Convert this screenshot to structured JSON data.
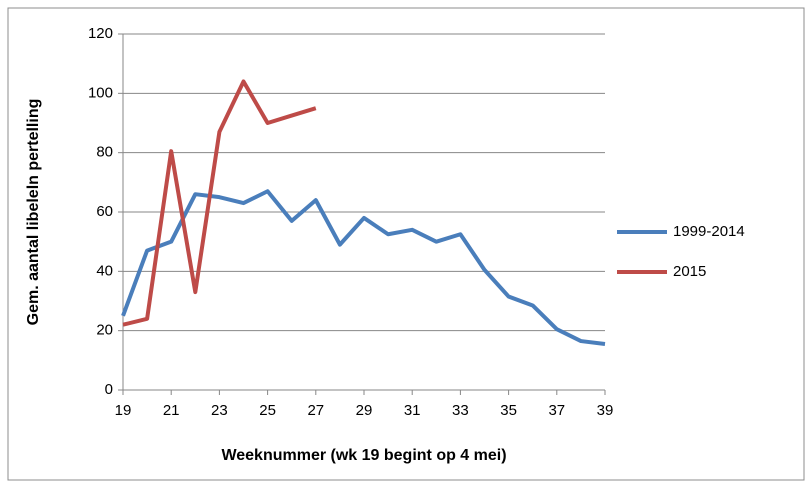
{
  "chart_data": {
    "type": "line",
    "xlabel": "Weeknummer (wk 19 begint op 4 mei)",
    "ylabel": "Gem. aantal libeleln pertelling",
    "x": [
      19,
      20,
      21,
      22,
      23,
      24,
      25,
      26,
      27,
      28,
      29,
      30,
      31,
      32,
      33,
      34,
      35,
      36,
      37,
      38,
      39
    ],
    "series": [
      {
        "name": "1999-2014",
        "color": "#4a7ebb",
        "values": [
          25,
          47,
          50,
          66,
          65,
          63,
          67,
          57,
          64,
          49,
          58,
          52.5,
          54,
          50,
          52.5,
          40.5,
          31.5,
          28.5,
          20.5,
          16.5,
          15.5
        ]
      },
      {
        "name": "2015",
        "color": "#be4b48",
        "values": [
          22,
          24,
          80.5,
          33,
          87,
          104,
          90,
          92.5,
          95,
          null,
          null,
          null,
          null,
          null,
          null,
          null,
          null,
          null,
          null,
          null,
          null
        ]
      }
    ],
    "xlim": [
      19,
      39
    ],
    "xticks": [
      19,
      21,
      23,
      25,
      27,
      29,
      31,
      33,
      35,
      37,
      39
    ],
    "ylim": [
      0,
      120
    ],
    "yticks": [
      0,
      20,
      40,
      60,
      80,
      100,
      120
    ],
    "grid": true,
    "legend": "right"
  }
}
